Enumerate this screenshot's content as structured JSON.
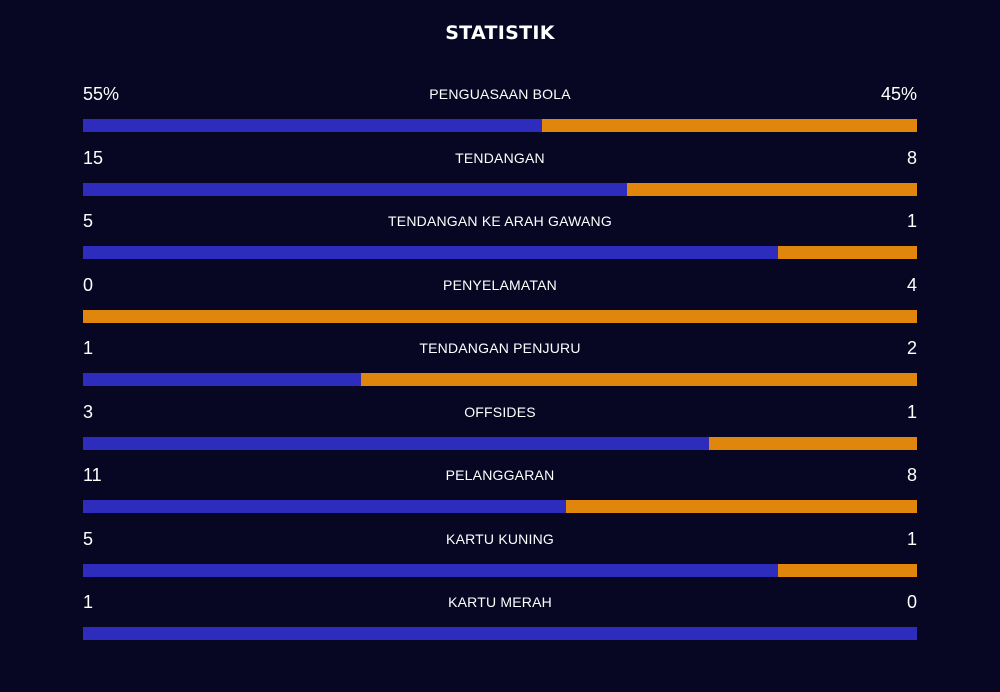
{
  "title": "STATISTIK",
  "colors": {
    "background": "#080723",
    "home": "#2d2cbc",
    "away": "#e0860d"
  },
  "stats": [
    {
      "label": "PENGUASAAN BOLA",
      "home": "55%",
      "away": "45%",
      "home_share": 0.55
    },
    {
      "label": "TENDANGAN",
      "home": "15",
      "away": "8",
      "home_share": 0.652
    },
    {
      "label": "TENDANGAN KE ARAH GAWANG",
      "home": "5",
      "away": "1",
      "home_share": 0.833
    },
    {
      "label": "PENYELAMATAN",
      "home": "0",
      "away": "4",
      "home_share": 0.0
    },
    {
      "label": "TENDANGAN PENJURU",
      "home": "1",
      "away": "2",
      "home_share": 0.333
    },
    {
      "label": "OFFSIDES",
      "home": "3",
      "away": "1",
      "home_share": 0.75
    },
    {
      "label": "PELANGGARAN",
      "home": "11",
      "away": "8",
      "home_share": 0.579
    },
    {
      "label": "KARTU KUNING",
      "home": "5",
      "away": "1",
      "home_share": 0.833
    },
    {
      "label": "KARTU MERAH",
      "home": "1",
      "away": "0",
      "home_share": 1.0
    }
  ]
}
